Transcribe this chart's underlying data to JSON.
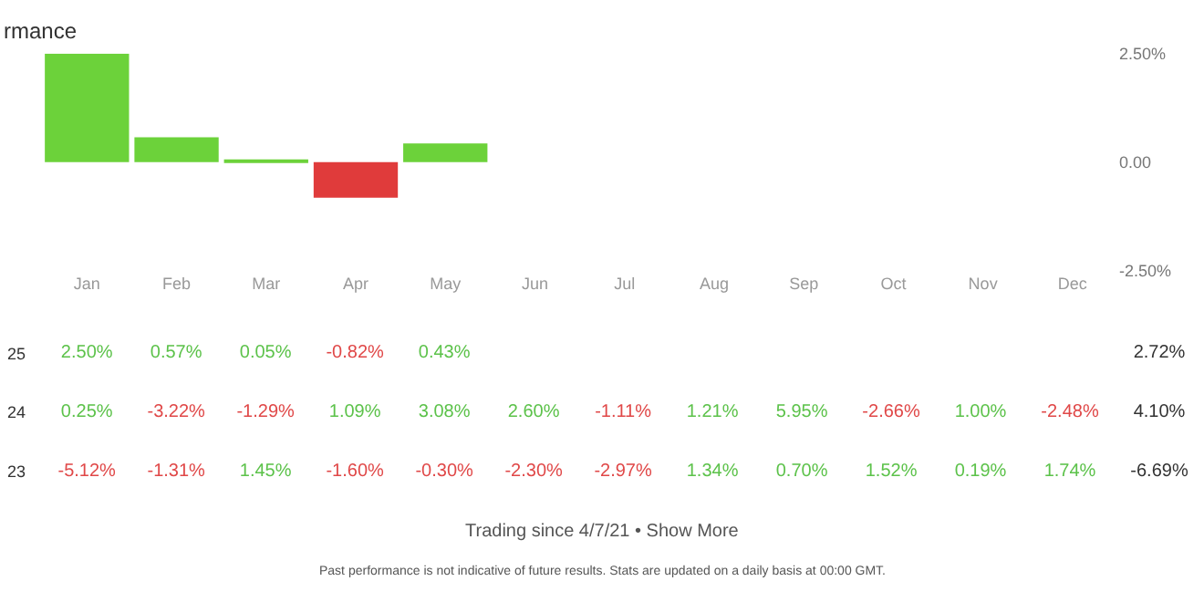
{
  "chart_data": [
    {
      "type": "bar",
      "title": "rmance",
      "categories": [
        "Jan",
        "Feb",
        "Mar",
        "Apr",
        "May",
        "Jun",
        "Jul",
        "Aug",
        "Sep",
        "Oct",
        "Nov",
        "Dec"
      ],
      "values": [
        2.5,
        0.57,
        0.05,
        -0.82,
        0.43,
        null,
        null,
        null,
        null,
        null,
        null,
        null
      ],
      "colors": [
        "#6cd23a",
        "#6cd23a",
        "#6cd23a",
        "#e03b3b",
        "#6cd23a",
        null,
        null,
        null,
        null,
        null,
        null,
        null
      ],
      "ylim": [
        -2.5,
        2.5
      ],
      "yticks": [
        {
          "value": 2.5,
          "label": "2.50%"
        },
        {
          "value": 0,
          "label": "0.00"
        },
        {
          "value": -2.5,
          "label": "-2.50%"
        }
      ],
      "legend": false
    },
    {
      "type": "other",
      "categories": [
        null,
        null,
        null,
        null,
        null,
        null,
        null,
        null,
        null,
        null,
        null,
        null,
        null
      ],
      "y_categories": [
        "25",
        "24",
        "23"
      ],
      "cell_labels": [
        [
          "2.50%",
          "0.57%",
          "0.05%",
          "-0.82%",
          "0.43%",
          null,
          null,
          null,
          null,
          null,
          null,
          null,
          "2.72%"
        ],
        [
          "0.25%",
          "-3.22%",
          "-1.29%",
          "1.09%",
          "3.08%",
          "2.60%",
          "-1.11%",
          "1.21%",
          "5.95%",
          "-2.66%",
          "1.00%",
          "-2.48%",
          "4.10%"
        ],
        [
          "-5.12%",
          "-1.31%",
          "1.45%",
          "-1.60%",
          "-0.30%",
          "-2.30%",
          "-2.97%",
          "1.34%",
          "0.70%",
          "1.52%",
          "0.19%",
          "1.74%",
          "-6.69%"
        ]
      ],
      "annotations": [
        "Trading since 4/7/21 • Show More",
        "Past performance is not indicative of future results. Stats are updated on a daily basis at 00:00 GMT."
      ]
    }
  ]
}
